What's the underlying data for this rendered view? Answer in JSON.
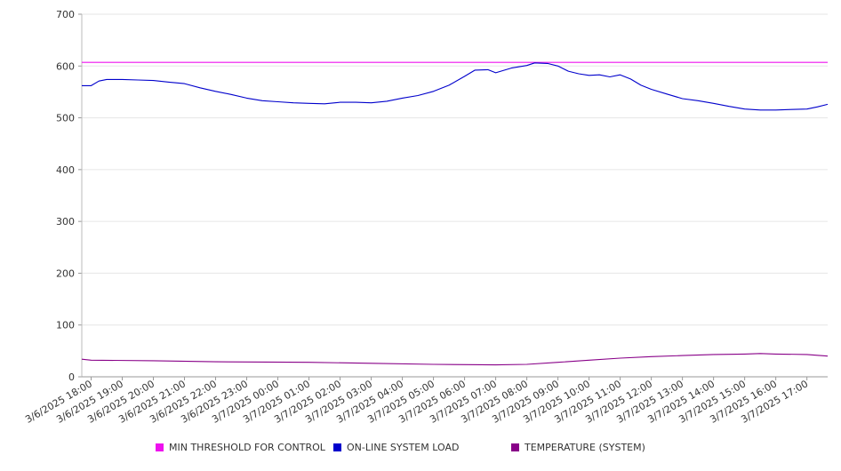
{
  "chart_data": {
    "type": "line",
    "ylim": [
      0,
      700
    ],
    "y_ticks": [
      0,
      100,
      200,
      300,
      400,
      500,
      600,
      700
    ],
    "grid": true,
    "legend_position": "bottom",
    "x_tick_labels": [
      "3/6/2025 18:00",
      "3/6/2025 19:00",
      "3/6/2025 20:00",
      "3/6/2025 21:00",
      "3/6/2025 22:00",
      "3/6/2025 23:00",
      "3/7/2025 00:00",
      "3/7/2025 01:00",
      "3/7/2025 02:00",
      "3/7/2025 03:00",
      "3/7/2025 04:00",
      "3/7/2025 05:00",
      "3/7/2025 06:00",
      "3/7/2025 07:00",
      "3/7/2025 08:00",
      "3/7/2025 09:00",
      "3/7/2025 10:00",
      "3/7/2025 11:00",
      "3/7/2025 12:00",
      "3/7/2025 13:00",
      "3/7/2025 14:00",
      "3/7/2025 15:00",
      "3/7/2025 16:00",
      "3/7/2025 17:00"
    ],
    "x_range": [
      "3/6/2025 17:42",
      "3/7/2025 17:40"
    ],
    "x_interval_minutes": 60,
    "series": [
      {
        "name": "MIN THRESHOLD FOR CONTROL",
        "color": "#ee11ee",
        "points": [
          [
            "3/6/2025 17:42",
            607
          ],
          [
            "3/7/2025 17:40",
            607
          ]
        ]
      },
      {
        "name": "ON-LINE SYSTEM LOAD",
        "color": "#0000cc",
        "points": [
          [
            "3/6/2025 17:42",
            562
          ],
          [
            "3/6/2025 18:00",
            562
          ],
          [
            "3/6/2025 18:15",
            571
          ],
          [
            "3/6/2025 18:30",
            574
          ],
          [
            "3/6/2025 19:00",
            574
          ],
          [
            "3/6/2025 19:30",
            573
          ],
          [
            "3/6/2025 20:00",
            572
          ],
          [
            "3/6/2025 20:30",
            569
          ],
          [
            "3/6/2025 21:00",
            566
          ],
          [
            "3/6/2025 21:30",
            558
          ],
          [
            "3/6/2025 22:00",
            551
          ],
          [
            "3/6/2025 22:30",
            545
          ],
          [
            "3/6/2025 23:00",
            538
          ],
          [
            "3/6/2025 23:30",
            533
          ],
          [
            "3/7/2025 00:00",
            531
          ],
          [
            "3/7/2025 00:30",
            529
          ],
          [
            "3/7/2025 01:00",
            528
          ],
          [
            "3/7/2025 01:30",
            527
          ],
          [
            "3/7/2025 02:00",
            530
          ],
          [
            "3/7/2025 02:30",
            530
          ],
          [
            "3/7/2025 03:00",
            529
          ],
          [
            "3/7/2025 03:30",
            532
          ],
          [
            "3/7/2025 04:00",
            538
          ],
          [
            "3/7/2025 04:30",
            543
          ],
          [
            "3/7/2025 05:00",
            551
          ],
          [
            "3/7/2025 05:30",
            563
          ],
          [
            "3/7/2025 06:00",
            580
          ],
          [
            "3/7/2025 06:20",
            592
          ],
          [
            "3/7/2025 06:45",
            593
          ],
          [
            "3/7/2025 07:00",
            587
          ],
          [
            "3/7/2025 07:30",
            596
          ],
          [
            "3/7/2025 08:00",
            601
          ],
          [
            "3/7/2025 08:15",
            606
          ],
          [
            "3/7/2025 08:40",
            605
          ],
          [
            "3/7/2025 09:00",
            600
          ],
          [
            "3/7/2025 09:20",
            590
          ],
          [
            "3/7/2025 09:40",
            585
          ],
          [
            "3/7/2025 10:00",
            582
          ],
          [
            "3/7/2025 10:20",
            583
          ],
          [
            "3/7/2025 10:40",
            579
          ],
          [
            "3/7/2025 11:00",
            583
          ],
          [
            "3/7/2025 11:20",
            575
          ],
          [
            "3/7/2025 11:40",
            563
          ],
          [
            "3/7/2025 12:00",
            555
          ],
          [
            "3/7/2025 12:30",
            546
          ],
          [
            "3/7/2025 13:00",
            537
          ],
          [
            "3/7/2025 13:30",
            533
          ],
          [
            "3/7/2025 14:00",
            528
          ],
          [
            "3/7/2025 14:30",
            522
          ],
          [
            "3/7/2025 15:00",
            517
          ],
          [
            "3/7/2025 15:30",
            515
          ],
          [
            "3/7/2025 16:00",
            515
          ],
          [
            "3/7/2025 16:30",
            516
          ],
          [
            "3/7/2025 17:00",
            517
          ],
          [
            "3/7/2025 17:20",
            521
          ],
          [
            "3/7/2025 17:40",
            526
          ]
        ]
      },
      {
        "name": "TEMPERATURE (SYSTEM)",
        "color": "#880088",
        "points": [
          [
            "3/6/2025 17:42",
            34
          ],
          [
            "3/6/2025 18:00",
            32
          ],
          [
            "3/6/2025 20:00",
            31
          ],
          [
            "3/6/2025 22:00",
            29
          ],
          [
            "3/7/2025 01:00",
            28
          ],
          [
            "3/7/2025 03:00",
            26
          ],
          [
            "3/7/2025 05:00",
            24
          ],
          [
            "3/7/2025 07:00",
            23
          ],
          [
            "3/7/2025 08:00",
            24
          ],
          [
            "3/7/2025 09:00",
            28
          ],
          [
            "3/7/2025 10:00",
            32
          ],
          [
            "3/7/2025 11:00",
            36
          ],
          [
            "3/7/2025 12:00",
            39
          ],
          [
            "3/7/2025 13:00",
            41
          ],
          [
            "3/7/2025 14:00",
            43
          ],
          [
            "3/7/2025 15:00",
            44
          ],
          [
            "3/7/2025 15:30",
            45
          ],
          [
            "3/7/2025 16:00",
            44
          ],
          [
            "3/7/2025 17:00",
            43
          ],
          [
            "3/7/2025 17:40",
            40
          ]
        ]
      }
    ]
  }
}
